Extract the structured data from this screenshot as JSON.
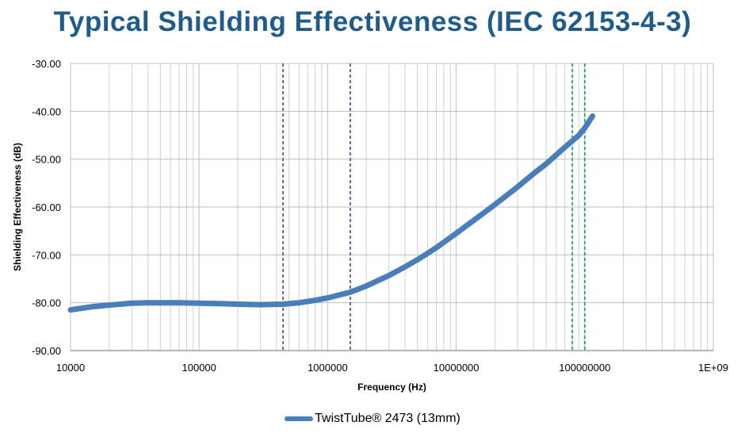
{
  "chart_data": {
    "type": "line",
    "title": "Typical Shielding Effectiveness (IEC 62153-4-3)",
    "xlabel": "Frequency (Hz)",
    "ylabel": "Shielding Effectiveness (dB)",
    "x_scale": "log",
    "xlim": [
      10000,
      1000000000
    ],
    "ylim": [
      -90,
      -30
    ],
    "x_ticks": [
      10000,
      100000,
      1000000,
      10000000,
      100000000,
      1000000000
    ],
    "x_tick_labels": [
      "10000",
      "100000",
      "1000000",
      "10000000",
      "100000000",
      "1E+09"
    ],
    "y_ticks": [
      -90,
      -80,
      -70,
      -60,
      -50,
      -40,
      -30
    ],
    "y_tick_labels": [
      "-90.00",
      "-80.00",
      "-70.00",
      "-60.00",
      "-50.00",
      "-40.00",
      "-30.00"
    ],
    "grid": true,
    "legend_position": "bottom",
    "series": [
      {
        "name": "TwistTube® 2473 (13mm)",
        "color": "#4a7ebb",
        "x": [
          10000,
          15000,
          20000,
          30000,
          40000,
          50000,
          70000,
          100000,
          150000,
          200000,
          300000,
          450000,
          600000,
          800000,
          1000000,
          1500000,
          2000000,
          3000000,
          4000000,
          5000000,
          7000000,
          10000000,
          15000000,
          20000000,
          30000000,
          40000000,
          50000000,
          70000000,
          90000000,
          100000000,
          115000000
        ],
        "y": [
          -81.5,
          -80.8,
          -80.5,
          -80.1,
          -80.0,
          -80.0,
          -80.0,
          -80.1,
          -80.2,
          -80.3,
          -80.4,
          -80.3,
          -80.0,
          -79.5,
          -79.0,
          -77.8,
          -76.5,
          -74.3,
          -72.5,
          -71.0,
          -68.5,
          -65.5,
          -62.0,
          -59.5,
          -55.8,
          -53.0,
          -51.0,
          -47.5,
          -45.0,
          -43.5,
          -41.0
        ]
      }
    ],
    "reference_lines": [
      {
        "x": 450000,
        "color": "#7030a0",
        "style": "dashed"
      },
      {
        "x": 1500000,
        "color": "#7030a0",
        "style": "dashed"
      },
      {
        "x": 80000000,
        "color": "#00b050",
        "style": "dashed"
      },
      {
        "x": 100000000,
        "color": "#00b050",
        "style": "dashed"
      }
    ]
  }
}
